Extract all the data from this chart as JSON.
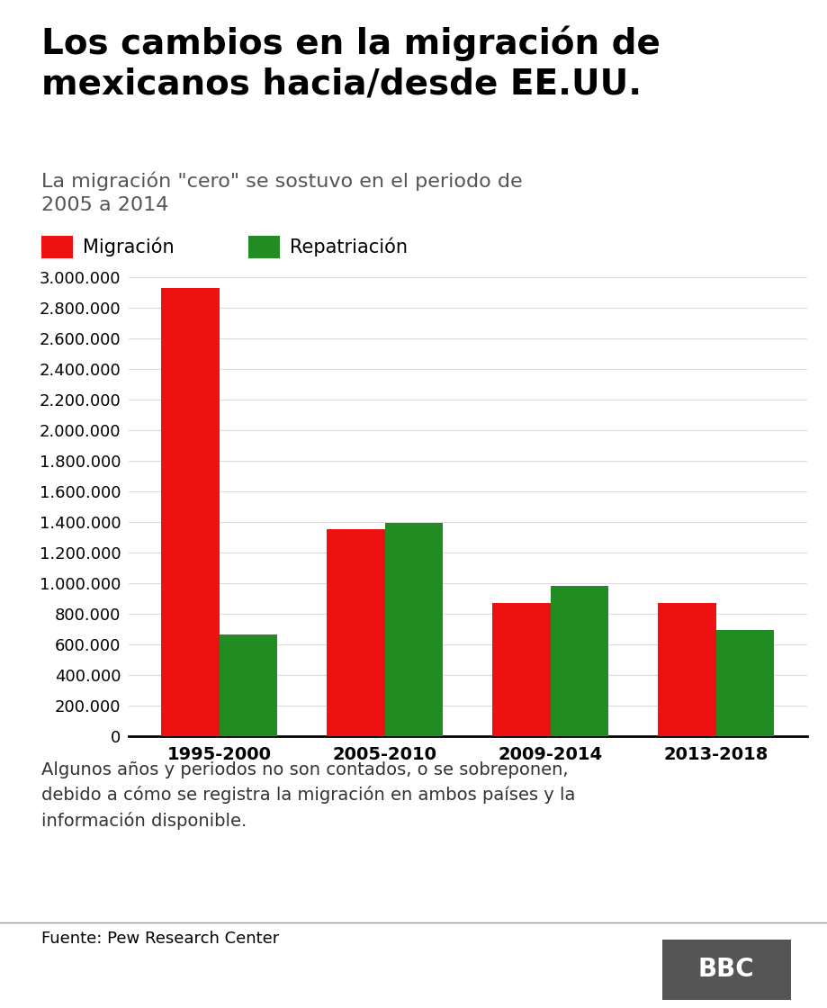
{
  "title": "Los cambios en la migración de\nmexicanos hacia/desde EE.UU.",
  "subtitle": "La migración \"cero\" se sostuvo en el periodo de\n2005 a 2014",
  "categories": [
    "1995-2000",
    "2005-2010",
    "2009-2014",
    "2013-2018"
  ],
  "migracion": [
    2930000,
    1350000,
    870000,
    870000
  ],
  "repatriacion": [
    660000,
    1390000,
    980000,
    690000
  ],
  "color_migracion": "#ee1111",
  "color_repatriacion": "#228B22",
  "legend_migracion": "Migración",
  "legend_repatriacion": "Repatriación",
  "ylim": [
    0,
    3000000
  ],
  "ytick_step": 200000,
  "footnote": "Algunos años y periodos no son contados, o se sobreponen,\ndebido a cómo se registra la migración en ambos países y la\ninformación disponible.",
  "source": "Fuente: Pew Research Center",
  "bbc_label": "BBC",
  "bbc_bg": "#555555",
  "background_color": "#ffffff",
  "bar_width": 0.35,
  "title_fontsize": 28,
  "subtitle_fontsize": 16,
  "legend_fontsize": 15,
  "tick_fontsize": 13,
  "footnote_fontsize": 14,
  "source_fontsize": 13,
  "grid_color": "#dddddd"
}
